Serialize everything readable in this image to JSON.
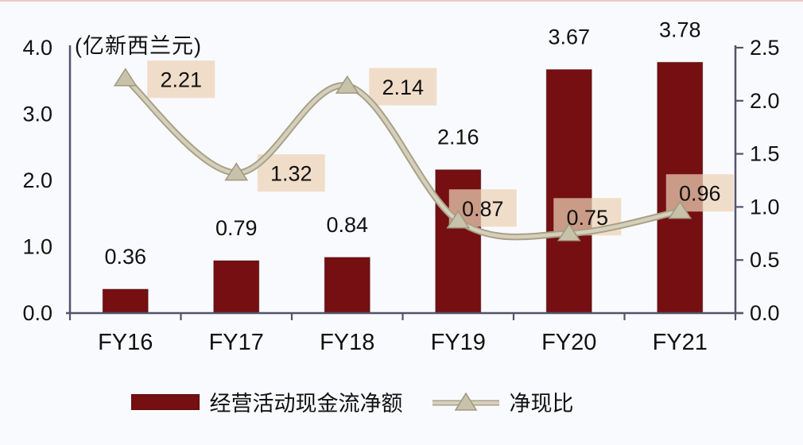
{
  "chart_data": {
    "type": "bar",
    "subtype": "combo-bar-line-dual-axis",
    "categories": [
      "FY16",
      "FY17",
      "FY18",
      "FY19",
      "FY20",
      "FY21"
    ],
    "series": [
      {
        "name": "经营活动现金流净额",
        "type": "bar",
        "axis": "left",
        "values": [
          0.36,
          0.79,
          0.84,
          2.16,
          3.67,
          3.78
        ]
      },
      {
        "name": "净现比",
        "type": "line",
        "axis": "right",
        "values": [
          2.21,
          1.32,
          2.14,
          0.87,
          0.75,
          0.96
        ]
      }
    ],
    "title": "",
    "unit_label": "(亿新西兰元)",
    "xlabel": "",
    "ylabel_left": "亿新西兰元",
    "ylabel_right": "",
    "left_axis": {
      "min": 0,
      "max": 4,
      "ticks": [
        "0.0",
        "1.0",
        "2.0",
        "3.0",
        "4.0"
      ]
    },
    "right_axis": {
      "min": 0,
      "max": 2.5,
      "ticks": [
        "0.0",
        "0.5",
        "1.0",
        "1.5",
        "2.0",
        "2.5"
      ]
    },
    "grid": false,
    "legend_position": "bottom"
  },
  "legend": {
    "bar_label": "经营活动现金流净额",
    "line_label": "净现比"
  },
  "colors": {
    "bar": "#750f12",
    "bar_edge": "rgba(40,0,0,0.35)",
    "line_core": "#d5cfbb",
    "line_edge": "#a8a188",
    "marker_fill": "#c8c2ab",
    "marker_edge": "#9f9880",
    "label_box": "rgba(235,209,180,0.72)",
    "axis": "#53536b",
    "text": "#111111",
    "background": "#f9fafd"
  }
}
